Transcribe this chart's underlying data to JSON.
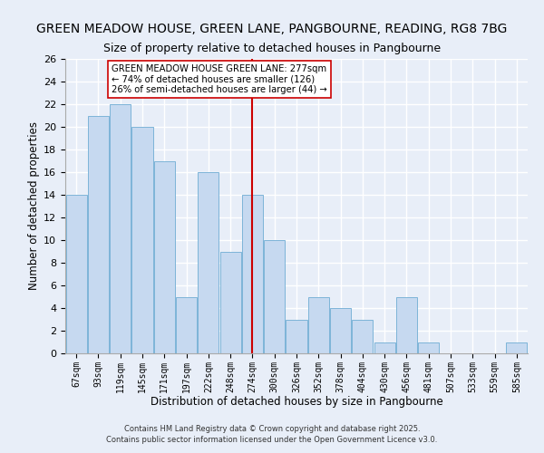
{
  "title": "GREEN MEADOW HOUSE, GREEN LANE, PANGBOURNE, READING, RG8 7BG",
  "subtitle": "Size of property relative to detached houses in Pangbourne",
  "xlabel": "Distribution of detached houses by size in Pangbourne",
  "ylabel": "Number of detached properties",
  "bar_labels": [
    "67sqm",
    "93sqm",
    "119sqm",
    "145sqm",
    "171sqm",
    "197sqm",
    "222sqm",
    "248sqm",
    "274sqm",
    "300sqm",
    "326sqm",
    "352sqm",
    "378sqm",
    "404sqm",
    "430sqm",
    "456sqm",
    "481sqm",
    "507sqm",
    "533sqm",
    "559sqm",
    "585sqm"
  ],
  "bar_heights": [
    14,
    21,
    22,
    20,
    17,
    5,
    16,
    9,
    14,
    10,
    3,
    5,
    4,
    3,
    1,
    5,
    1,
    0,
    0,
    0,
    1
  ],
  "bar_color": "#c6d9f0",
  "bar_edge_color": "#7db4d8",
  "vline_color": "#cc0000",
  "annotation_text": "GREEN MEADOW HOUSE GREEN LANE: 277sqm\n← 74% of detached houses are smaller (126)\n26% of semi-detached houses are larger (44) →",
  "annotation_box_color": "#ffffff",
  "annotation_box_edge": "#cc0000",
  "ylim": [
    0,
    26
  ],
  "yticks": [
    0,
    2,
    4,
    6,
    8,
    10,
    12,
    14,
    16,
    18,
    20,
    22,
    24,
    26
  ],
  "footer1": "Contains HM Land Registry data © Crown copyright and database right 2025.",
  "footer2": "Contains public sector information licensed under the Open Government Licence v3.0.",
  "bg_color": "#e8eef8",
  "grid_color": "#ffffff",
  "title_fontsize": 10,
  "subtitle_fontsize": 9
}
